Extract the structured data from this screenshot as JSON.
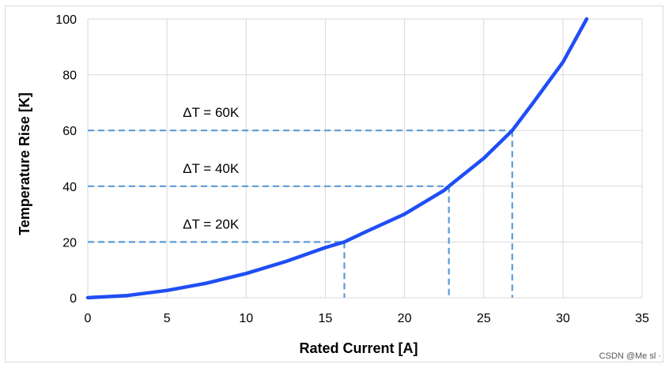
{
  "chart_data": {
    "type": "line",
    "xlabel": "Rated Current [A]",
    "ylabel": "Temperature Rise  [K]",
    "xlim": [
      0,
      35
    ],
    "ylim": [
      0,
      100
    ],
    "x_ticks": [
      0,
      5,
      10,
      15,
      20,
      25,
      30,
      35
    ],
    "y_ticks": [
      0,
      20,
      40,
      60,
      80,
      100
    ],
    "grid": true,
    "series": [
      {
        "color": "#1f4ef5",
        "x": [
          0,
          2.5,
          5,
          7.5,
          10,
          12.5,
          15,
          16.2,
          17.5,
          20,
          22.5,
          22.8,
          25,
          26.8,
          28,
          30,
          31.5
        ],
        "y": [
          0,
          0.8,
          2.6,
          5.2,
          8.7,
          13.0,
          18.0,
          20.0,
          23.5,
          30.0,
          38.5,
          40.0,
          50.0,
          60.0,
          69.0,
          84.5,
          100.0
        ]
      }
    ],
    "reference_lines": [
      {
        "label": "ΔT = 20K",
        "x": 16.2,
        "y": 20
      },
      {
        "label": "ΔT = 40K",
        "x": 22.8,
        "y": 40
      },
      {
        "label": "ΔT = 60K",
        "x": 26.8,
        "y": 60
      }
    ],
    "colors": {
      "curve": "#1f4ef5",
      "reference": "#5b9bd5",
      "grid": "#d9d9d9"
    }
  },
  "watermark": "CSDN @Me sl ·"
}
